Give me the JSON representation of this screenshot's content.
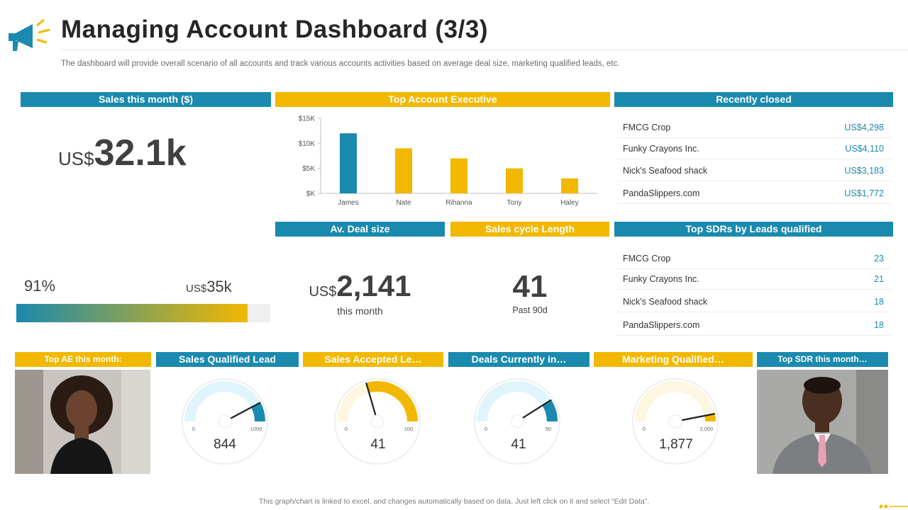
{
  "header": {
    "title": "Managing Account Dashboard (3/3)",
    "subtitle": "The dashboard will provide overall scenario of all accounts and track various accounts activities based on average deal size, marketing qualified leads, etc.",
    "logo_icon": "megaphone-icon"
  },
  "sales_month": {
    "label": "Sales this month ($)",
    "unit": "US$",
    "value": "32.1k"
  },
  "top_ae": {
    "label": "Top Account Executive",
    "chart_data": {
      "type": "bar",
      "categories": [
        "James",
        "Nate",
        "Rihanna",
        "Tony",
        "Haley"
      ],
      "values": [
        12000,
        9000,
        7000,
        5000,
        3000
      ],
      "colors": [
        "#1a8aae",
        "#f2b800",
        "#f2b800",
        "#f2b800",
        "#f2b800"
      ],
      "ylim": [
        0,
        15000
      ],
      "yticks": [
        0,
        5000,
        10000,
        15000
      ],
      "ytick_labels": [
        "$K",
        "$5K",
        "$10K",
        "$15K"
      ],
      "title": "",
      "xlabel": "",
      "ylabel": ""
    }
  },
  "recently_closed": {
    "label": "Recently closed",
    "items": [
      {
        "name": "FMCG Crop",
        "value": "US$4,298"
      },
      {
        "name": "Funky Crayons Inc.",
        "value": "US$4,110"
      },
      {
        "name": "Nick's Seafood shack",
        "value": "US$3,183"
      },
      {
        "name": "PandaSlippers.com",
        "value": "US$1,772"
      }
    ]
  },
  "progress": {
    "percent_label": "91%",
    "percent": 91,
    "unit": "US$",
    "value": "35k",
    "colors": {
      "start": "#1a8aae",
      "end": "#f2b800",
      "track": "#efefef"
    }
  },
  "deal_size": {
    "label": "Av. Deal size",
    "unit": "US$",
    "value": "2,141",
    "caption": "this month"
  },
  "sales_cycle": {
    "label": "Sales cycle Length",
    "value": "41",
    "caption": "Past 90d"
  },
  "top_sdrs": {
    "label": "Top SDRs by Leads qualified",
    "items": [
      {
        "name": "FMCG Crop",
        "value": "23"
      },
      {
        "name": "Funky Crayons Inc.",
        "value": "21"
      },
      {
        "name": "Nick's Seafood shack",
        "value": "18"
      },
      {
        "name": "PandaSlippers.com",
        "value": "18"
      }
    ]
  },
  "top_ae_month": {
    "label": "Top AE this month:",
    "photo": "woman-portrait"
  },
  "gauges": [
    {
      "label": "Sales Qualified Lead",
      "min": "0",
      "max": "1000",
      "value": "844",
      "fraction": 0.844,
      "fill": "#1a8aae",
      "track": "#e0f4fb"
    },
    {
      "label": "Sales Accepted Le…",
      "min": "0",
      "max": "100",
      "value": "41",
      "fraction": 0.41,
      "fill": "#f2b800",
      "track": "#fdf6e0"
    },
    {
      "label": "Deals Currently in…",
      "min": "0",
      "max": "50",
      "value": "41",
      "fraction": 0.82,
      "fill": "#1a8aae",
      "track": "#e0f4fb"
    },
    {
      "label": "Marketing Qualified…",
      "min": "0",
      "max": "2,000",
      "value": "1,877",
      "fraction": 0.9385,
      "fill": "#f2b800",
      "track": "#fdf6e0"
    }
  ],
  "top_sdr_month": {
    "label": "Top SDR this month…",
    "photo": "man-portrait"
  },
  "footer": {
    "note": "This graph/chart is linked to excel, and changes automatically based on data. Just left click on it and select “Edit Data”."
  }
}
